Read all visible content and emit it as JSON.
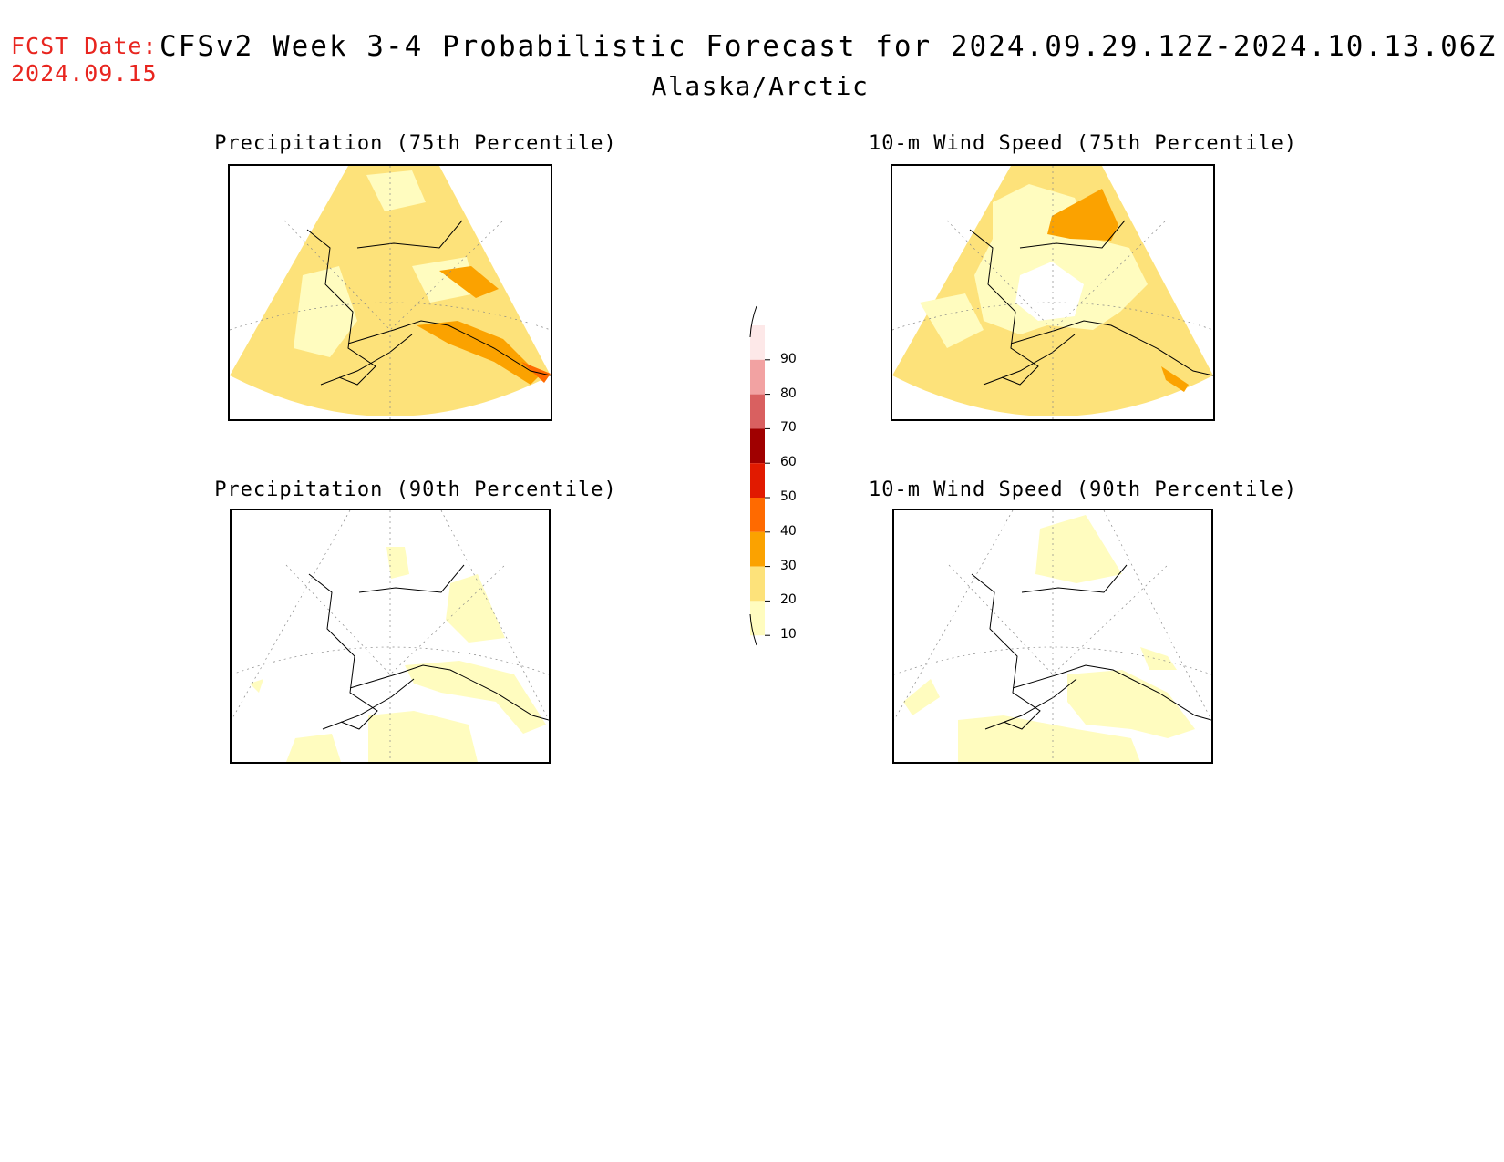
{
  "header": {
    "fcst_label": "FCST Date:",
    "fcst_date": "2024.09.15",
    "title": "CFSv2 Week 3-4 Probabilistic Forecast for 2024.09.29.12Z-2024.10.13.06Z",
    "region": "Alaska/Arctic"
  },
  "panels": [
    {
      "id": "precip75",
      "title": "Precipitation (75th Percentile)",
      "base_level": 20,
      "coverage": "full"
    },
    {
      "id": "wind75",
      "title": "10-m Wind Speed (75th Percentile)",
      "base_level": 20,
      "coverage": "full"
    },
    {
      "id": "precip90",
      "title": "Precipitation (90th Percentile)",
      "base_level": 10,
      "coverage": "sparse"
    },
    {
      "id": "wind90",
      "title": "10-m Wind Speed (90th Percentile)",
      "base_level": 10,
      "coverage": "sparse"
    }
  ],
  "colorbar": {
    "levels": [
      "90",
      "80",
      "70",
      "60",
      "50",
      "40",
      "30",
      "20",
      "10"
    ],
    "colors": [
      "#fde8e8",
      "#f2a2a2",
      "#d96060",
      "#a00000",
      "#e11a00",
      "#ff6a00",
      "#fba200",
      "#fde27a",
      "#fffcbf"
    ]
  },
  "colors": {
    "fcst_label": "#e8251f",
    "level_10": "#fffcbf",
    "level_20": "#fde27a",
    "level_30": "#fba200",
    "level_40": "#ff6a00"
  }
}
